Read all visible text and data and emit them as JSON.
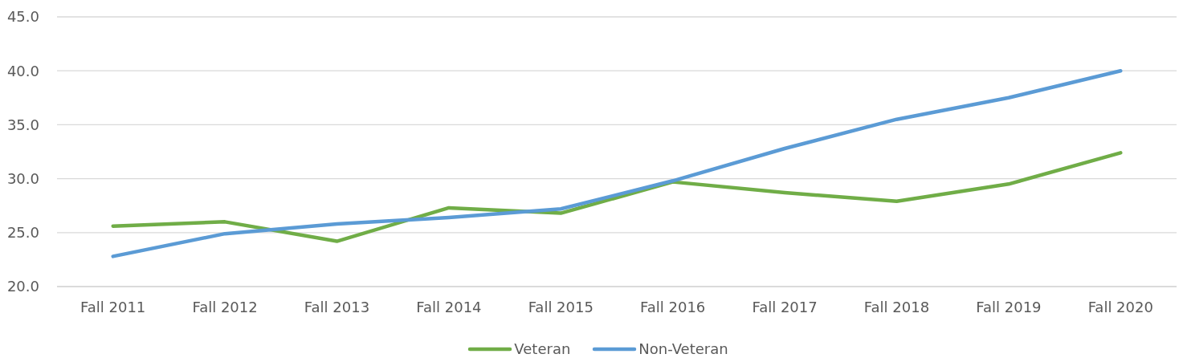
{
  "chart_data": {
    "type": "line",
    "categories": [
      "Fall 2011",
      "Fall 2012",
      "Fall 2013",
      "Fall 2014",
      "Fall 2015",
      "Fall 2016",
      "Fall 2017",
      "Fall 2018",
      "Fall 2019",
      "Fall 2020"
    ],
    "series": [
      {
        "name": "Veteran",
        "color": "#70ad47",
        "values": [
          25.6,
          26.0,
          24.2,
          27.3,
          26.8,
          29.7,
          28.7,
          27.9,
          29.5,
          32.4
        ]
      },
      {
        "name": "Non-Veteran",
        "color": "#5b9bd5",
        "values": [
          22.8,
          24.9,
          25.8,
          26.4,
          27.2,
          29.8,
          32.8,
          35.5,
          37.5,
          40.0
        ]
      }
    ],
    "ylim": [
      20,
      45
    ],
    "yticks": [
      {
        "value": 20,
        "label": "20.0"
      },
      {
        "value": 25,
        "label": "25.0"
      },
      {
        "value": 30,
        "label": "30.0"
      },
      {
        "value": 35,
        "label": "35.0"
      },
      {
        "value": 40,
        "label": "40.0"
      },
      {
        "value": 45,
        "label": "45.0"
      }
    ],
    "grid": "y",
    "legend": "bottom",
    "marker": "none",
    "line_style": "solid"
  }
}
